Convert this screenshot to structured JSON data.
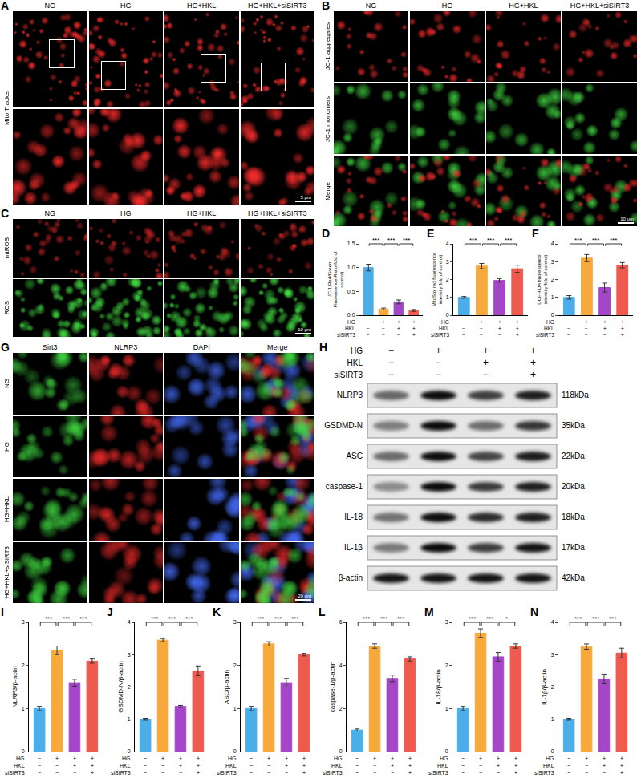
{
  "panels": {
    "A": {
      "letter": "A",
      "columns": [
        "NG",
        "HG",
        "HG+HKL",
        "HG+HKL+siSIRT3"
      ],
      "rows": [
        "Mito Tracker"
      ],
      "scale_bar": "5 μm"
    },
    "B": {
      "letter": "B",
      "columns": [
        "NG",
        "HG",
        "HG+HKL",
        "HG+HKL+siSIRT3"
      ],
      "rows": [
        "JC-1 aggregates",
        "JC-1 monomers",
        "Merge"
      ],
      "scale_bar": "10 μm"
    },
    "C": {
      "letter": "C",
      "columns": [
        "NG",
        "HG",
        "HG+HKL",
        "HG+HKL+siSIRT3"
      ],
      "rows": [
        "mtROS",
        "ROS"
      ],
      "scale_bar": "10 μm"
    },
    "G": {
      "letter": "G",
      "columns": [
        "Sirt3",
        "NLRP3",
        "DAPI",
        "Merge"
      ],
      "rows": [
        "NG",
        "HG",
        "HG+HKL",
        "HG+HKL+siSIRT3"
      ],
      "scale_bar": "20 μm"
    },
    "H": {
      "letter": "H",
      "conditions": [
        {
          "label": "HG",
          "signs": [
            "−",
            "+",
            "+",
            "+"
          ]
        },
        {
          "label": "HKL",
          "signs": [
            "−",
            "−",
            "+",
            "+"
          ]
        },
        {
          "label": "siSIRT3",
          "signs": [
            "−",
            "−",
            "−",
            "+"
          ]
        }
      ],
      "bands": [
        {
          "name": "NLRP3",
          "size": "118kDa"
        },
        {
          "name": "GSDMD-N",
          "size": "35kDa"
        },
        {
          "name": "ASC",
          "size": "22kDa"
        },
        {
          "name": "caspase-1",
          "size": "20kDa"
        },
        {
          "name": "IL-18",
          "size": "18kDa"
        },
        {
          "name": "IL-1β",
          "size": "17kDa"
        },
        {
          "name": "β-actin",
          "size": "42kDa"
        }
      ]
    }
  },
  "chart_data": [
    {
      "type": "bar",
      "panel": "D",
      "y_title": "JC-1 Red/Green Fluorescence Ratio(fold of control)",
      "values": [
        1.0,
        0.13,
        0.28,
        0.1
      ],
      "errors": [
        0.07,
        0.02,
        0.04,
        0.02
      ],
      "colors": [
        "#4BAEE8",
        "#F7A93B",
        "#A347C8",
        "#EE5A4E"
      ],
      "ylim": [
        0,
        1.5
      ],
      "yticks": [
        {
          "value": 0,
          "label": "0.0"
        },
        {
          "value": 0.5,
          "label": "0.5"
        },
        {
          "value": 1,
          "label": "1.0"
        },
        {
          "value": 1.5,
          "label": "1.5"
        }
      ],
      "grid": false,
      "tick_labels": "y",
      "significance": [
        {
          "from": 0,
          "to": 1,
          "label": "***"
        },
        {
          "from": 1,
          "to": 2,
          "label": "***"
        },
        {
          "from": 2,
          "to": 3,
          "label": "***"
        }
      ],
      "conditions": [
        {
          "label": "HG",
          "signs": [
            "−",
            "+",
            "+",
            "+"
          ]
        },
        {
          "label": "HKL",
          "signs": [
            "−",
            "−",
            "+",
            "+"
          ]
        },
        {
          "label": "siSIRT3",
          "signs": [
            "−",
            "−",
            "−",
            "+"
          ]
        }
      ]
    },
    {
      "type": "bar",
      "panel": "E",
      "y_title": "MitoSox red fluorescence intensity(fold of control)",
      "values": [
        1.0,
        2.75,
        1.95,
        2.6
      ],
      "errors": [
        0.05,
        0.15,
        0.1,
        0.2
      ],
      "colors": [
        "#4BAEE8",
        "#F7A93B",
        "#A347C8",
        "#EE5A4E"
      ],
      "ylim": [
        0,
        4
      ],
      "yticks": [
        0,
        1,
        2,
        3,
        4
      ],
      "grid": false,
      "tick_labels": "y",
      "significance": [
        {
          "from": 0,
          "to": 1,
          "label": "***"
        },
        {
          "from": 1,
          "to": 2,
          "label": "***"
        },
        {
          "from": 2,
          "to": 3,
          "label": "***"
        }
      ],
      "conditions": [
        {
          "label": "HG",
          "signs": [
            "−",
            "+",
            "+",
            "+"
          ]
        },
        {
          "label": "HKL",
          "signs": [
            "−",
            "−",
            "+",
            "+"
          ]
        },
        {
          "label": "siSIRT3",
          "signs": [
            "−",
            "−",
            "−",
            "+"
          ]
        }
      ]
    },
    {
      "type": "bar",
      "panel": "F",
      "y_title": "DCFH-DA fluorescence intensity(fold of control)",
      "values": [
        1.0,
        3.2,
        1.55,
        2.8
      ],
      "errors": [
        0.1,
        0.2,
        0.25,
        0.15
      ],
      "colors": [
        "#4BAEE8",
        "#F7A93B",
        "#A347C8",
        "#EE5A4E"
      ],
      "ylim": [
        0,
        4
      ],
      "yticks": [
        0,
        1,
        2,
        3,
        4
      ],
      "grid": false,
      "tick_labels": "y",
      "significance": [
        {
          "from": 0,
          "to": 1,
          "label": "***"
        },
        {
          "from": 1,
          "to": 2,
          "label": "***"
        },
        {
          "from": 2,
          "to": 3,
          "label": "***"
        }
      ],
      "conditions": [
        {
          "label": "HG",
          "signs": [
            "−",
            "+",
            "+",
            "+"
          ]
        },
        {
          "label": "HKL",
          "signs": [
            "−",
            "−",
            "+",
            "+"
          ]
        },
        {
          "label": "siSIRT3",
          "signs": [
            "−",
            "−",
            "−",
            "+"
          ]
        }
      ]
    },
    {
      "type": "bar",
      "panel": "I",
      "y_title": "NLRP3/β-actin",
      "values": [
        1.0,
        2.35,
        1.6,
        2.1
      ],
      "errors": [
        0.05,
        0.1,
        0.08,
        0.05
      ],
      "colors": [
        "#4BAEE8",
        "#F7A93B",
        "#A347C8",
        "#EE5A4E"
      ],
      "ylim": [
        0,
        3
      ],
      "yticks": [
        0,
        1,
        2,
        3
      ],
      "grid": false,
      "tick_labels": "y",
      "significance": [
        {
          "from": 0,
          "to": 1,
          "label": "***"
        },
        {
          "from": 1,
          "to": 2,
          "label": "***"
        },
        {
          "from": 2,
          "to": 3,
          "label": "***"
        }
      ],
      "conditions": [
        {
          "label": "HG",
          "signs": [
            "−",
            "+",
            "+",
            "+"
          ]
        },
        {
          "label": "HKL",
          "signs": [
            "−",
            "−",
            "+",
            "+"
          ]
        },
        {
          "label": "siSIRT3",
          "signs": [
            "−",
            "−",
            "−",
            "+"
          ]
        }
      ]
    },
    {
      "type": "bar",
      "panel": "J",
      "y_title": "GSDMD-N/β-actin",
      "values": [
        1.0,
        3.45,
        1.4,
        2.5
      ],
      "errors": [
        0.03,
        0.05,
        0.03,
        0.15
      ],
      "colors": [
        "#4BAEE8",
        "#F7A93B",
        "#A347C8",
        "#EE5A4E"
      ],
      "ylim": [
        0,
        4
      ],
      "yticks": [
        0,
        1,
        2,
        3,
        4
      ],
      "grid": false,
      "tick_labels": "y",
      "significance": [
        {
          "from": 0,
          "to": 1,
          "label": "***"
        },
        {
          "from": 1,
          "to": 2,
          "label": "***"
        },
        {
          "from": 2,
          "to": 3,
          "label": "***"
        }
      ],
      "conditions": [
        {
          "label": "HG",
          "signs": [
            "−",
            "+",
            "+",
            "+"
          ]
        },
        {
          "label": "HKL",
          "signs": [
            "−",
            "−",
            "+",
            "+"
          ]
        },
        {
          "label": "siSIRT3",
          "signs": [
            "−",
            "−",
            "−",
            "+"
          ]
        }
      ]
    },
    {
      "type": "bar",
      "panel": "K",
      "y_title": "ASC/β-actin",
      "values": [
        1.0,
        2.5,
        1.6,
        2.25
      ],
      "errors": [
        0.05,
        0.05,
        0.1,
        0.03
      ],
      "colors": [
        "#4BAEE8",
        "#F7A93B",
        "#A347C8",
        "#EE5A4E"
      ],
      "ylim": [
        0,
        3
      ],
      "yticks": [
        0,
        1,
        2,
        3
      ],
      "grid": false,
      "tick_labels": "y",
      "significance": [
        {
          "from": 0,
          "to": 1,
          "label": "***"
        },
        {
          "from": 1,
          "to": 2,
          "label": "***"
        },
        {
          "from": 2,
          "to": 3,
          "label": "***"
        }
      ],
      "conditions": [
        {
          "label": "HG",
          "signs": [
            "−",
            "+",
            "+",
            "+"
          ]
        },
        {
          "label": "HKL",
          "signs": [
            "−",
            "−",
            "+",
            "+"
          ]
        },
        {
          "label": "siSIRT3",
          "signs": [
            "−",
            "−",
            "−",
            "+"
          ]
        }
      ]
    },
    {
      "type": "bar",
      "panel": "L",
      "y_title": "caspase-1/β-actin",
      "values": [
        1.0,
        4.9,
        3.4,
        4.3
      ],
      "errors": [
        0.05,
        0.1,
        0.15,
        0.1
      ],
      "colors": [
        "#4BAEE8",
        "#F7A93B",
        "#A347C8",
        "#EE5A4E"
      ],
      "ylim": [
        0,
        6
      ],
      "yticks": [
        0,
        2,
        4,
        6
      ],
      "grid": false,
      "tick_labels": "y",
      "significance": [
        {
          "from": 0,
          "to": 1,
          "label": "***"
        },
        {
          "from": 1,
          "to": 2,
          "label": "***"
        },
        {
          "from": 2,
          "to": 3,
          "label": "***"
        }
      ],
      "conditions": [
        {
          "label": "HG",
          "signs": [
            "−",
            "+",
            "+",
            "+"
          ]
        },
        {
          "label": "HKL",
          "signs": [
            "−",
            "−",
            "+",
            "+"
          ]
        },
        {
          "label": "siSIRT3",
          "signs": [
            "−",
            "−",
            "−",
            "+"
          ]
        }
      ]
    },
    {
      "type": "bar",
      "panel": "M",
      "y_title": "IL-18/β-actin",
      "values": [
        1.0,
        2.75,
        2.2,
        2.45
      ],
      "errors": [
        0.05,
        0.1,
        0.1,
        0.05
      ],
      "colors": [
        "#4BAEE8",
        "#F7A93B",
        "#A347C8",
        "#EE5A4E"
      ],
      "ylim": [
        0,
        3
      ],
      "yticks": [
        0,
        1,
        2,
        3
      ],
      "grid": false,
      "tick_labels": "y",
      "significance": [
        {
          "from": 0,
          "to": 1,
          "label": "***"
        },
        {
          "from": 1,
          "to": 2,
          "label": "***"
        },
        {
          "from": 2,
          "to": 3,
          "label": "*"
        }
      ],
      "conditions": [
        {
          "label": "HG",
          "signs": [
            "−",
            "+",
            "+",
            "+"
          ]
        },
        {
          "label": "HKL",
          "signs": [
            "−",
            "−",
            "+",
            "+"
          ]
        },
        {
          "label": "siSIRT3",
          "signs": [
            "−",
            "−",
            "−",
            "+"
          ]
        }
      ]
    },
    {
      "type": "bar",
      "panel": "N",
      "y_title": "IL-1β/β-actin",
      "values": [
        1.0,
        3.25,
        2.25,
        3.05
      ],
      "errors": [
        0.03,
        0.08,
        0.15,
        0.15
      ],
      "colors": [
        "#4BAEE8",
        "#F7A93B",
        "#A347C8",
        "#EE5A4E"
      ],
      "ylim": [
        0,
        4
      ],
      "yticks": [
        0,
        1,
        2,
        3,
        4
      ],
      "grid": false,
      "tick_labels": "y",
      "significance": [
        {
          "from": 0,
          "to": 1,
          "label": "***"
        },
        {
          "from": 1,
          "to": 2,
          "label": "***"
        },
        {
          "from": 2,
          "to": 3,
          "label": "***"
        }
      ],
      "conditions": [
        {
          "label": "HG",
          "signs": [
            "−",
            "+",
            "+",
            "+"
          ]
        },
        {
          "label": "HKL",
          "signs": [
            "−",
            "−",
            "+",
            "+"
          ]
        },
        {
          "label": "siSIRT3",
          "signs": [
            "−",
            "−",
            "−",
            "+"
          ]
        }
      ]
    }
  ]
}
